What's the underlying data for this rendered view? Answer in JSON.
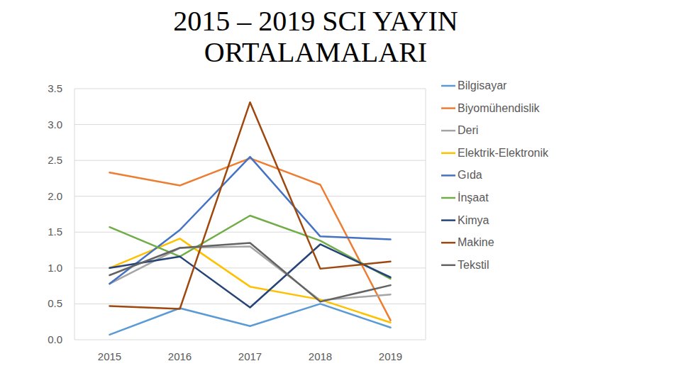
{
  "chart_data": {
    "type": "line",
    "title": "2015 – 2019 SCI YAYIN ORTALAMALARI",
    "categories": [
      "2015",
      "2016",
      "2017",
      "2018",
      "2019"
    ],
    "series": [
      {
        "name": "Bilgisayar",
        "color": "#5b9bd5",
        "values": [
          0.07,
          0.44,
          0.19,
          0.5,
          0.17
        ]
      },
      {
        "name": "Biyomühendislik",
        "color": "#ed7d31",
        "values": [
          2.33,
          2.15,
          2.53,
          2.16,
          0.27
        ]
      },
      {
        "name": "Deri",
        "color": "#a5a5a5",
        "values": [
          0.78,
          1.28,
          1.3,
          0.55,
          0.63
        ]
      },
      {
        "name": "Elektrik-Elektronik",
        "color": "#ffc000",
        "values": [
          1.0,
          1.41,
          0.74,
          0.56,
          0.24
        ]
      },
      {
        "name": "Gıda",
        "color": "#4472c4",
        "values": [
          0.78,
          1.53,
          2.55,
          1.44,
          1.4
        ]
      },
      {
        "name": "İnşaat",
        "color": "#70ad47",
        "values": [
          1.57,
          1.16,
          1.73,
          1.38,
          0.85
        ]
      },
      {
        "name": "Kimya",
        "color": "#264478",
        "values": [
          1.0,
          1.16,
          0.45,
          1.33,
          0.87
        ]
      },
      {
        "name": "Makine",
        "color": "#9e480e",
        "values": [
          0.47,
          0.43,
          3.31,
          0.99,
          1.09
        ]
      },
      {
        "name": "Tekstil",
        "color": "#636363",
        "values": [
          0.9,
          1.28,
          1.35,
          0.53,
          0.76
        ]
      }
    ],
    "ylim": [
      0,
      3.5
    ],
    "yticks": [
      {
        "value": 0,
        "label": "0.0"
      },
      {
        "value": 0.5,
        "label": "0.5"
      },
      {
        "value": 1,
        "label": "1.0"
      },
      {
        "value": 1.5,
        "label": "1.5"
      },
      {
        "value": 2,
        "label": "2.0"
      },
      {
        "value": 2.5,
        "label": "2.5"
      },
      {
        "value": 3,
        "label": "3.0"
      },
      {
        "value": 3.5,
        "label": "3.5"
      }
    ],
    "grid": true,
    "legend": "right"
  }
}
